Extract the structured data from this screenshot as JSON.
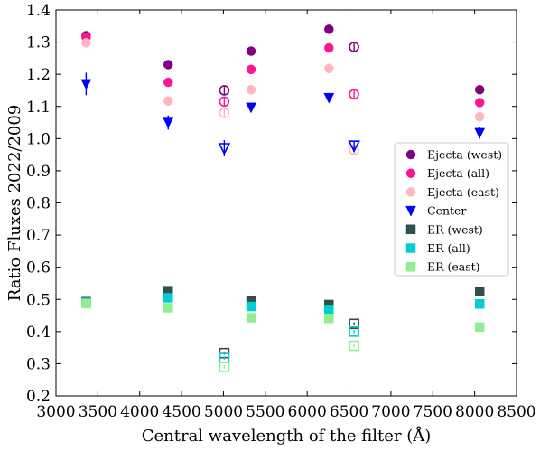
{
  "chart_data": {
    "type": "scatter",
    "xlabel": "Central wavelength of the filter (Å)",
    "ylabel": "Ratio Fluxes 2022/2009",
    "xlim": [
      3000,
      8500
    ],
    "ylim": [
      0.2,
      1.4
    ],
    "xticks": [
      3000,
      3500,
      4000,
      4500,
      5000,
      5500,
      6000,
      6500,
      7000,
      7500,
      8000,
      8500
    ],
    "yticks": [
      0.2,
      0.3,
      0.4,
      0.5,
      0.6,
      0.7,
      0.8,
      0.9,
      1.0,
      1.1,
      1.2,
      1.3,
      1.4
    ],
    "xtick_labels": [
      "3000",
      "3500",
      "4000",
      "4500",
      "5000",
      "5500",
      "6000",
      "6500",
      "7000",
      "7500",
      "8000",
      "8500"
    ],
    "ytick_labels": [
      "0.2",
      "0.3",
      "0.4",
      "0.5",
      "0.6",
      "0.7",
      "0.8",
      "0.9",
      "1.0",
      "1.1",
      "1.2",
      "1.3",
      "1.4"
    ],
    "grid": false,
    "legend_position": "right",
    "series": [
      {
        "name": "Ejecta (west)",
        "marker": "circle",
        "color": "#800080",
        "points": [
          {
            "x": 3360,
            "y": 1.32,
            "err": 0.012
          },
          {
            "x": 4340,
            "y": 1.23,
            "err": 0.01
          },
          {
            "x": 5010,
            "y": 1.15,
            "err": 0.015,
            "open": true
          },
          {
            "x": 5330,
            "y": 1.272,
            "err": 0.01
          },
          {
            "x": 6260,
            "y": 1.34,
            "err": 0.01
          },
          {
            "x": 6560,
            "y": 1.285,
            "err": 0.015,
            "open": true
          },
          {
            "x": 8060,
            "y": 1.152,
            "err": 0.01
          }
        ]
      },
      {
        "name": "Ejecta (all)",
        "marker": "circle",
        "color": "#ff1493",
        "points": [
          {
            "x": 3360,
            "y": 1.315,
            "err": 0.01
          },
          {
            "x": 4340,
            "y": 1.175,
            "err": 0.01
          },
          {
            "x": 5010,
            "y": 1.115,
            "err": 0.015,
            "open": true
          },
          {
            "x": 5330,
            "y": 1.215,
            "err": 0.01
          },
          {
            "x": 6260,
            "y": 1.282,
            "err": 0.01
          },
          {
            "x": 6560,
            "y": 1.138,
            "err": 0.015,
            "open": true
          },
          {
            "x": 8060,
            "y": 1.112,
            "err": 0.01
          }
        ]
      },
      {
        "name": "Ejecta (east)",
        "marker": "circle",
        "color": "#ffb6c1",
        "points": [
          {
            "x": 3360,
            "y": 1.298,
            "err": 0.01
          },
          {
            "x": 4340,
            "y": 1.117,
            "err": 0.01
          },
          {
            "x": 5010,
            "y": 1.08,
            "err": 0.015,
            "open": true
          },
          {
            "x": 5330,
            "y": 1.152,
            "err": 0.01
          },
          {
            "x": 6260,
            "y": 1.218,
            "err": 0.01
          },
          {
            "x": 6560,
            "y": 0.965,
            "err": 0.015,
            "open": true
          },
          {
            "x": 8060,
            "y": 1.068,
            "err": 0.01
          }
        ]
      },
      {
        "name": "Center",
        "marker": "triangle-down",
        "color": "#0000ff",
        "points": [
          {
            "x": 3360,
            "y": 1.17,
            "err": 0.035
          },
          {
            "x": 4340,
            "y": 1.05,
            "err": 0.022
          },
          {
            "x": 5010,
            "y": 0.97,
            "err": 0.025,
            "open": true
          },
          {
            "x": 5330,
            "y": 1.097,
            "err": 0.012
          },
          {
            "x": 6260,
            "y": 1.127,
            "err": 0.008
          },
          {
            "x": 6560,
            "y": 0.978,
            "err": 0.012,
            "open": true
          },
          {
            "x": 8060,
            "y": 1.018,
            "err": 0.018
          }
        ]
      },
      {
        "name": "ER (west)",
        "marker": "square",
        "color": "#2f4f4f",
        "points": [
          {
            "x": 3360,
            "y": 0.493,
            "err": 0.005
          },
          {
            "x": 4340,
            "y": 0.527,
            "err": 0.005
          },
          {
            "x": 5010,
            "y": 0.333,
            "err": 0.005,
            "open": true
          },
          {
            "x": 5330,
            "y": 0.497,
            "err": 0.005
          },
          {
            "x": 6260,
            "y": 0.484,
            "err": 0.005
          },
          {
            "x": 6560,
            "y": 0.424,
            "err": 0.005,
            "open": true
          },
          {
            "x": 8060,
            "y": 0.524,
            "err": 0.005
          }
        ]
      },
      {
        "name": "ER (all)",
        "marker": "square",
        "color": "#00ced1",
        "points": [
          {
            "x": 3360,
            "y": 0.49,
            "err": 0.005
          },
          {
            "x": 4340,
            "y": 0.505,
            "err": 0.005
          },
          {
            "x": 5010,
            "y": 0.318,
            "err": 0.005,
            "open": true
          },
          {
            "x": 5330,
            "y": 0.478,
            "err": 0.005
          },
          {
            "x": 6260,
            "y": 0.466,
            "err": 0.005
          },
          {
            "x": 6560,
            "y": 0.4,
            "err": 0.005,
            "open": true
          },
          {
            "x": 8060,
            "y": 0.486,
            "err": 0.005
          }
        ]
      },
      {
        "name": "ER (east)",
        "marker": "square",
        "color": "#90ee90",
        "points": [
          {
            "x": 3360,
            "y": 0.487,
            "err": 0.005
          },
          {
            "x": 4340,
            "y": 0.474,
            "err": 0.005
          },
          {
            "x": 5010,
            "y": 0.29,
            "err": 0.005,
            "open": true
          },
          {
            "x": 5330,
            "y": 0.443,
            "err": 0.005
          },
          {
            "x": 6260,
            "y": 0.441,
            "err": 0.005
          },
          {
            "x": 6560,
            "y": 0.356,
            "err": 0.005,
            "open": true
          },
          {
            "x": 8060,
            "y": 0.414,
            "err": 0.005
          }
        ]
      }
    ]
  }
}
